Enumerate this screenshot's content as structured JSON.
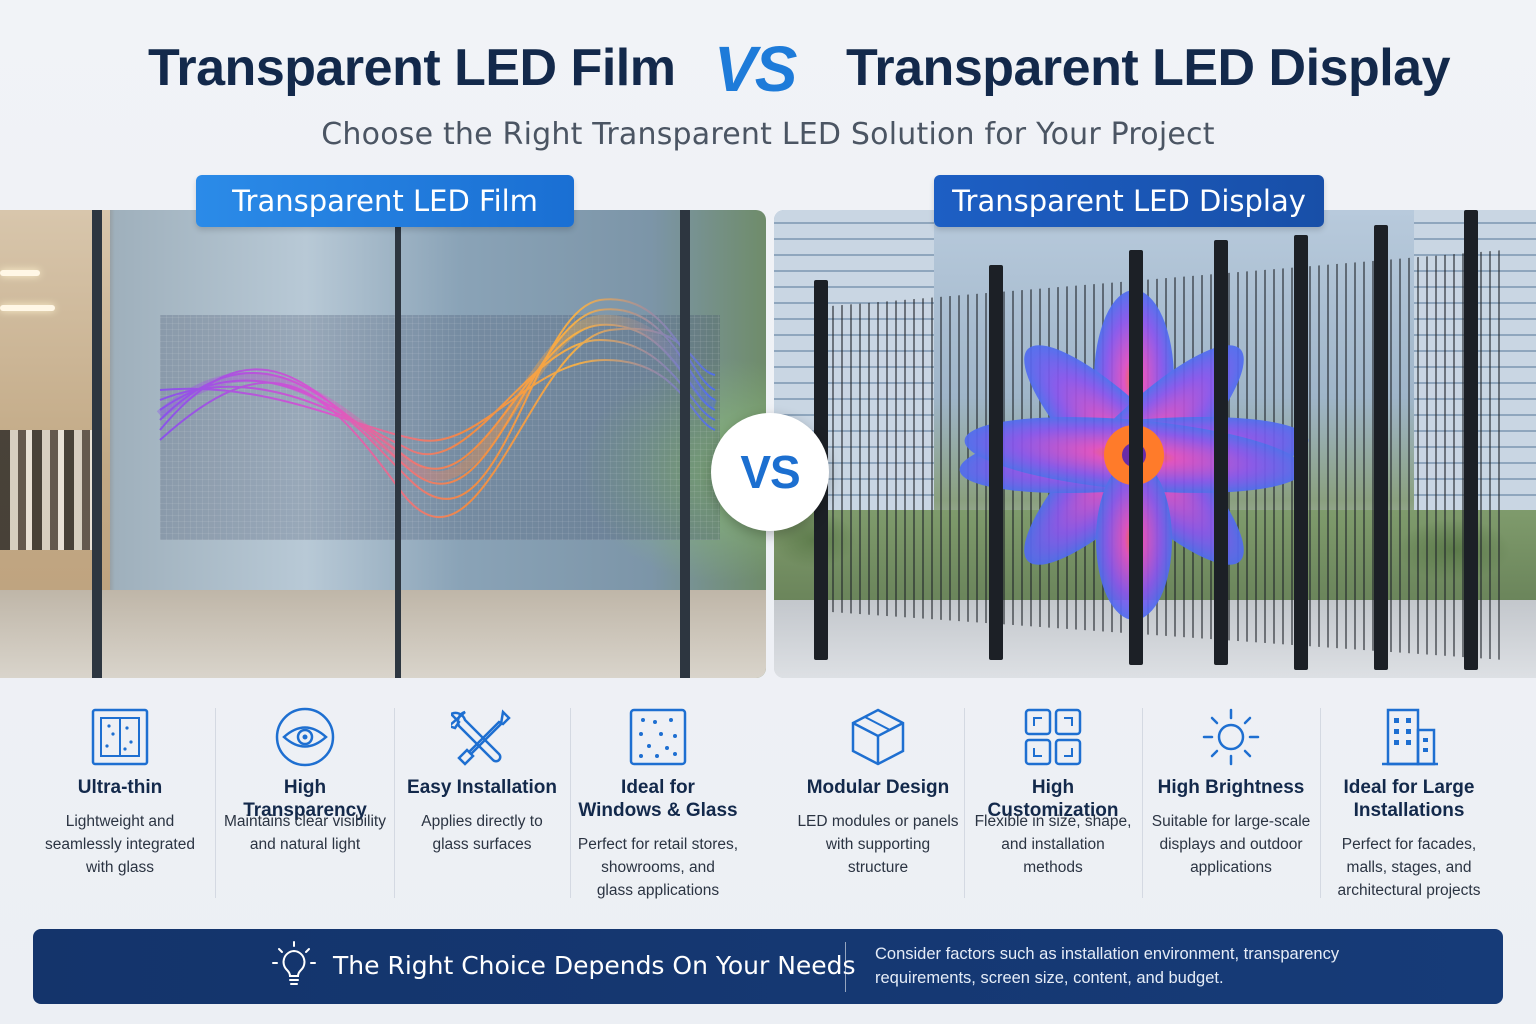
{
  "header": {
    "title_left": "Transparent LED Film",
    "vs": "VS",
    "title_right": "Transparent LED Display",
    "subtitle": "Choose the Right Transparent LED Solution for Your Project"
  },
  "panels": {
    "left_label": "Transparent LED Film",
    "right_label": "Transparent LED Display",
    "vs_badge": "VS"
  },
  "features_left": [
    {
      "icon": "film-panel-icon",
      "name": "Ultra-thin",
      "desc": [
        "Lightweight and",
        "seamlessly integrated",
        "with glass"
      ]
    },
    {
      "icon": "eye-icon",
      "name": "High Transparency",
      "desc": [
        "Maintains clear visibility",
        "and natural light"
      ]
    },
    {
      "icon": "wrench-screwdriver-icon",
      "name": "Easy Installation",
      "desc": [
        "Applies directly to",
        "glass surfaces"
      ]
    },
    {
      "icon": "glass-dots-icon",
      "name": [
        "Ideal for",
        "Windows & Glass"
      ],
      "desc": [
        "Perfect for retail stores,",
        "showrooms, and",
        "glass applications"
      ]
    }
  ],
  "features_right": [
    {
      "icon": "cube-icon",
      "name": "Modular Design",
      "desc": [
        "LED modules or panels",
        "with supporting",
        "structure"
      ]
    },
    {
      "icon": "grid-squares-icon",
      "name": "High Customization",
      "desc": [
        "Flexible in size, shape,",
        "and installation",
        "methods"
      ]
    },
    {
      "icon": "sun-icon",
      "name": "High Brightness",
      "desc": [
        "Suitable for large-scale",
        "displays and outdoor",
        "applications"
      ]
    },
    {
      "icon": "building-icon",
      "name": [
        "Ideal for Large",
        "Installations"
      ],
      "desc": [
        "Perfect for facades,",
        "malls, stages, and",
        "architectural projects"
      ]
    }
  ],
  "banner": {
    "icon": "lightbulb-icon",
    "headline": "The Right Choice Depends On Your Needs",
    "note": [
      "Consider factors such as installation environment, transparency",
      "requirements, screen size, content, and budget."
    ]
  },
  "colors": {
    "navy": "#13294b",
    "accent_blue": "#1e7bd9",
    "banner_bg": "#14346b"
  }
}
